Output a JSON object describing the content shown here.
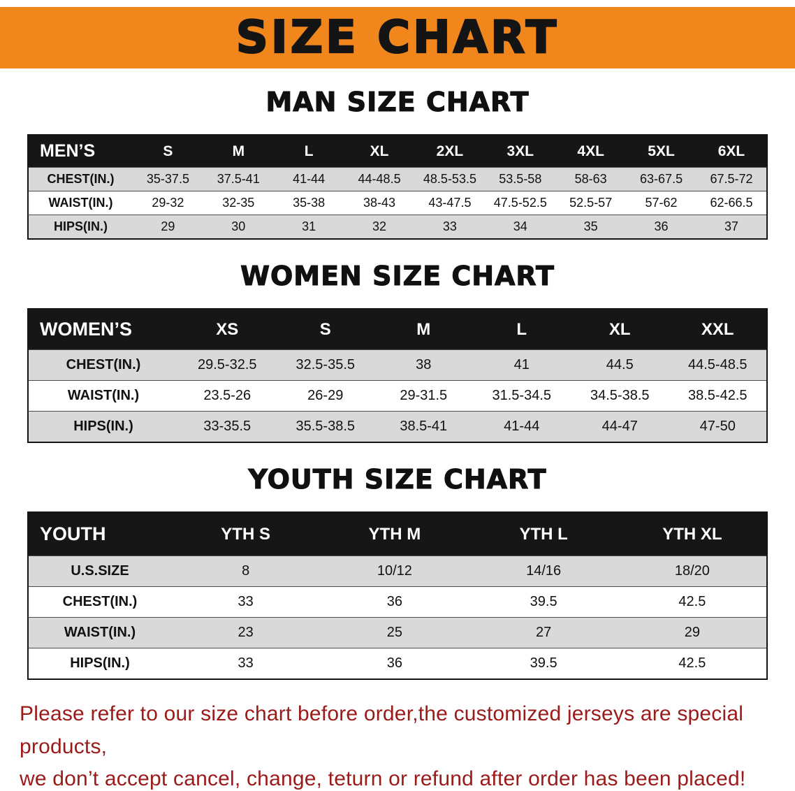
{
  "banner": {
    "title": "SIZE CHART",
    "bg_color": "#f0861c"
  },
  "sections": [
    {
      "title": "MAN SIZE CHART",
      "header_label": "MEN’S",
      "columns": [
        "S",
        "M",
        "L",
        "XL",
        "2XL",
        "3XL",
        "4XL",
        "5XL",
        "6XL"
      ],
      "rows": [
        {
          "label": "CHEST(IN.)",
          "values": [
            "35-37.5",
            "37.5-41",
            "41-44",
            "44-48.5",
            "48.5-53.5",
            "53.5-58",
            "58-63",
            "63-67.5",
            "67.5-72"
          ]
        },
        {
          "label": "WAIST(IN.)",
          "values": [
            "29-32",
            "32-35",
            "35-38",
            "38-43",
            "43-47.5",
            "47.5-52.5",
            "52.5-57",
            "57-62",
            "62-66.5"
          ]
        },
        {
          "label": "HIPS(IN.)",
          "values": [
            "29",
            "30",
            "31",
            "32",
            "33",
            "34",
            "35",
            "36",
            "37"
          ]
        }
      ]
    },
    {
      "title": "WOMEN SIZE CHART",
      "header_label": "WOMEN’S",
      "columns": [
        "XS",
        "S",
        "M",
        "L",
        "XL",
        "XXL"
      ],
      "rows": [
        {
          "label": "CHEST(IN.)",
          "values": [
            "29.5-32.5",
            "32.5-35.5",
            "38",
            "41",
            "44.5",
            "44.5-48.5"
          ]
        },
        {
          "label": "WAIST(IN.)",
          "values": [
            "23.5-26",
            "26-29",
            "29-31.5",
            "31.5-34.5",
            "34.5-38.5",
            "38.5-42.5"
          ]
        },
        {
          "label": "HIPS(IN.)",
          "values": [
            "33-35.5",
            "35.5-38.5",
            "38.5-41",
            "41-44",
            "44-47",
            "47-50"
          ]
        }
      ]
    },
    {
      "title": "YOUTH SIZE CHART",
      "header_label": "YOUTH",
      "columns": [
        "YTH S",
        "YTH M",
        "YTH L",
        "YTH XL"
      ],
      "rows": [
        {
          "label": "U.S.SIZE",
          "values": [
            "8",
            "10/12",
            "14/16",
            "18/20"
          ]
        },
        {
          "label": "CHEST(IN.)",
          "values": [
            "33",
            "36",
            "39.5",
            "42.5"
          ]
        },
        {
          "label": "WAIST(IN.)",
          "values": [
            "23",
            "25",
            "27",
            "29"
          ]
        },
        {
          "label": "HIPS(IN.)",
          "values": [
            "33",
            "36",
            "39.5",
            "42.5"
          ]
        }
      ]
    }
  ],
  "footer": {
    "line1": "Please refer to our size chart before order,the customized jerseys are special products,",
    "line2": "we don’t accept cancel, change, teturn or refund after order has been placed!",
    "text_color": "#9b1a1a"
  }
}
